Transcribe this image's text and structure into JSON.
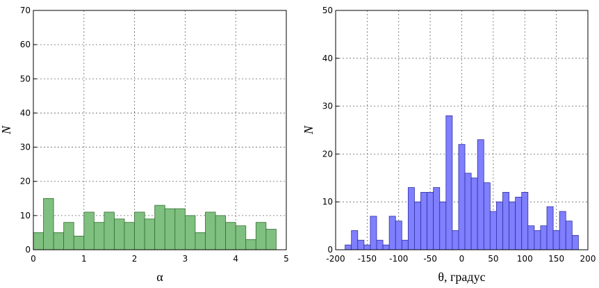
{
  "chart_data": [
    {
      "type": "histogram",
      "xlabel": "α",
      "ylabel": "N",
      "color": "#7fbf7f",
      "edgecolor": "#2f6f2f",
      "bins": [
        0,
        0.2,
        0.4,
        0.6,
        0.8,
        1.0,
        1.2,
        1.4,
        1.6,
        1.8,
        2.0,
        2.2,
        2.4,
        2.6,
        2.8,
        3.0,
        3.2,
        3.4,
        3.6,
        3.8,
        4.0,
        4.2,
        4.4,
        4.6,
        4.8
      ],
      "values": [
        5,
        15,
        5,
        8,
        4,
        11,
        8,
        11,
        9,
        8,
        11,
        9,
        13,
        12,
        12,
        10,
        5,
        11,
        10,
        8,
        7,
        3,
        8,
        6
      ],
      "xlim": [
        0,
        5
      ],
      "xticks": [
        0,
        1,
        2,
        3,
        4,
        5
      ],
      "ylim": [
        0,
        70
      ],
      "yticks": [
        0,
        10,
        20,
        30,
        40,
        50,
        60,
        70
      ],
      "grid": true
    },
    {
      "type": "histogram",
      "xlabel": "θ, градус",
      "ylabel": "N",
      "color": "#7f7fff",
      "edgecolor": "#2f2f9f",
      "bins": [
        -185,
        -175,
        -165,
        -155,
        -145,
        -135,
        -125,
        -115,
        -105,
        -95,
        -85,
        -75,
        -65,
        -55,
        -45,
        -35,
        -25,
        -15,
        -5,
        5,
        15,
        25,
        35,
        45,
        55,
        65,
        75,
        85,
        95,
        105,
        115,
        125,
        135,
        145,
        155,
        165,
        175,
        185
      ],
      "values": [
        1,
        4,
        2,
        1,
        7,
        2,
        1,
        7,
        6,
        2,
        13,
        10,
        12,
        12,
        13,
        10,
        28,
        4,
        22,
        16,
        15,
        23,
        14,
        8,
        10,
        12,
        10,
        11,
        12,
        5,
        4,
        5,
        9,
        4,
        8,
        6,
        3
      ],
      "xlim": [
        -200,
        200
      ],
      "xticks": [
        -200,
        -150,
        -100,
        -50,
        0,
        50,
        100,
        150,
        200
      ],
      "ylim": [
        0,
        50
      ],
      "yticks": [
        0,
        10,
        20,
        30,
        40,
        50
      ],
      "grid": true
    }
  ]
}
